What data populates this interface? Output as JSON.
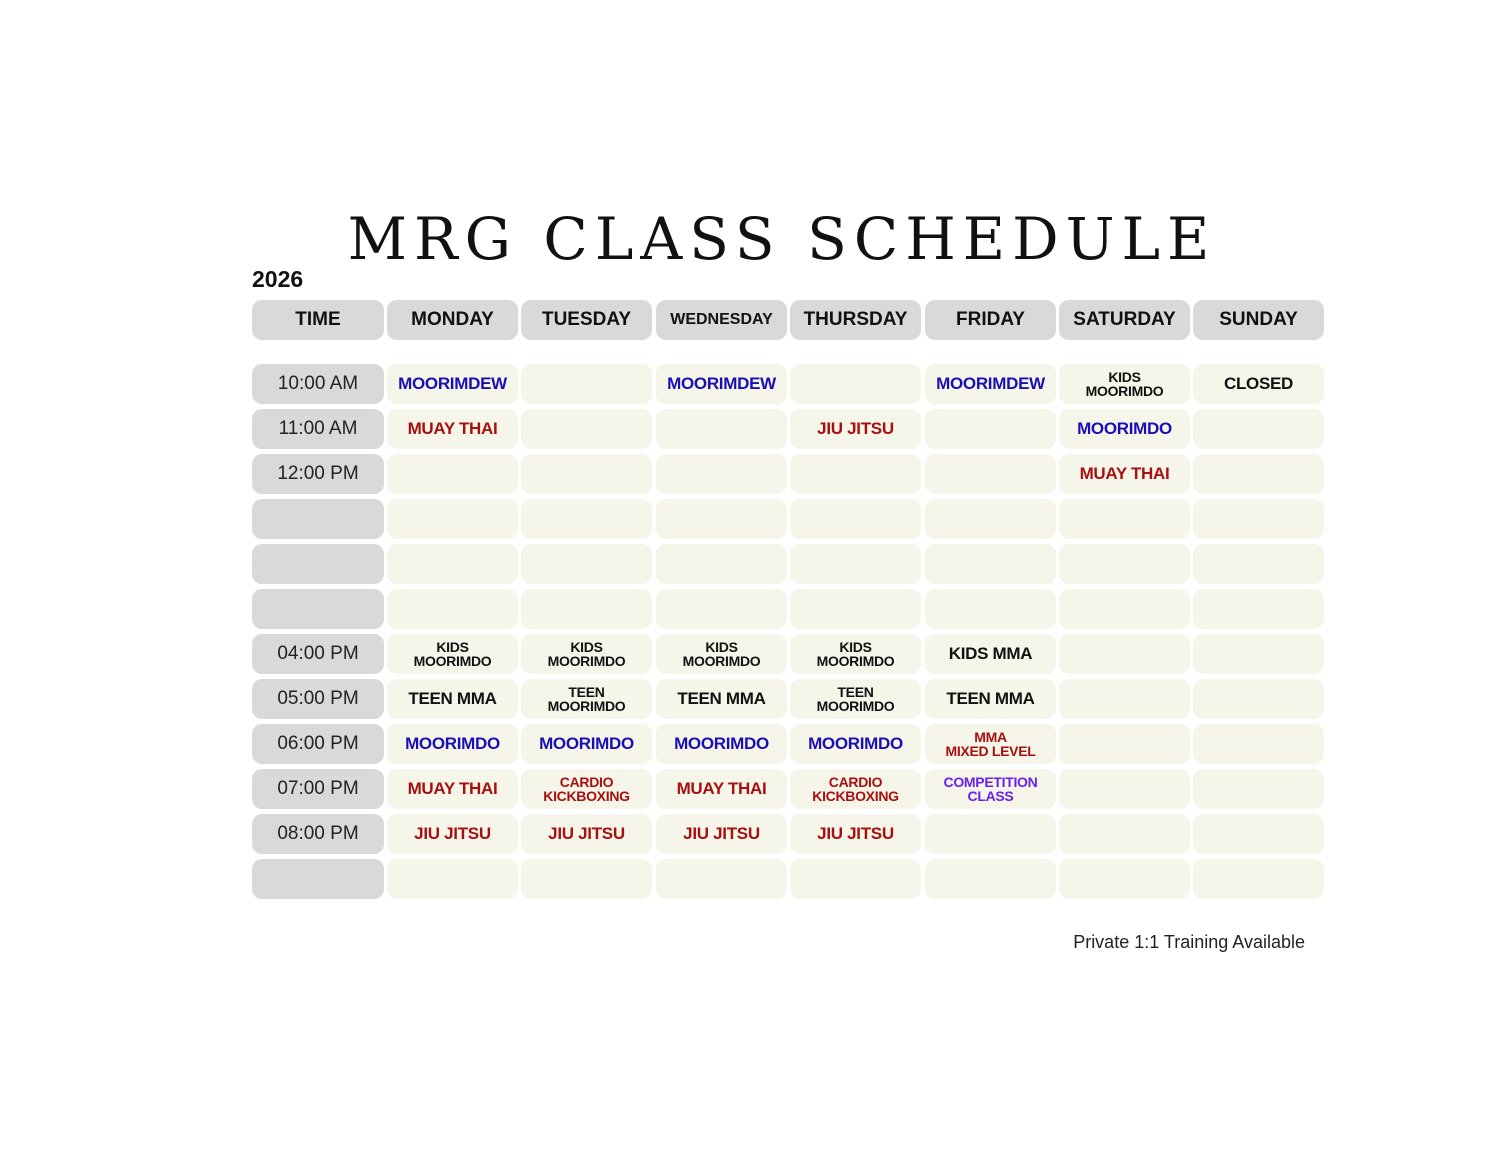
{
  "title": "MRG CLASS SCHEDULE",
  "year": "2026",
  "colors": {
    "black": "#111111",
    "blue": "#1a0fb5",
    "red": "#a80f0f",
    "purple": "#6a1ff0"
  },
  "headers": [
    "TIME",
    "MONDAY",
    "TUESDAY",
    "WEDNESDAY",
    "THURSDAY",
    "FRIDAY",
    "SATURDAY",
    "SUNDAY"
  ],
  "rows": [
    {
      "time": "10:00 AM",
      "cells": [
        {
          "text": "MOORIMDEW",
          "color": "blue"
        },
        {
          "text": ""
        },
        {
          "text": "MOORIMDEW",
          "color": "blue"
        },
        {
          "text": ""
        },
        {
          "text": "MOORIMDEW",
          "color": "blue"
        },
        {
          "text": "KIDS\nMOORIMDO",
          "color": "black"
        },
        {
          "text": "CLOSED",
          "color": "black"
        }
      ]
    },
    {
      "time": "11:00 AM",
      "cells": [
        {
          "text": "MUAY THAI",
          "color": "red"
        },
        {
          "text": ""
        },
        {
          "text": ""
        },
        {
          "text": "JIU JITSU",
          "color": "red"
        },
        {
          "text": ""
        },
        {
          "text": "MOORIMDO",
          "color": "blue"
        },
        {
          "text": ""
        }
      ]
    },
    {
      "time": "12:00 PM",
      "cells": [
        {
          "text": ""
        },
        {
          "text": ""
        },
        {
          "text": ""
        },
        {
          "text": ""
        },
        {
          "text": ""
        },
        {
          "text": "MUAY THAI",
          "color": "red"
        },
        {
          "text": ""
        }
      ]
    },
    {
      "time": "",
      "cells": [
        {
          "text": ""
        },
        {
          "text": ""
        },
        {
          "text": ""
        },
        {
          "text": ""
        },
        {
          "text": ""
        },
        {
          "text": ""
        },
        {
          "text": ""
        }
      ]
    },
    {
      "time": "",
      "cells": [
        {
          "text": ""
        },
        {
          "text": ""
        },
        {
          "text": ""
        },
        {
          "text": ""
        },
        {
          "text": ""
        },
        {
          "text": ""
        },
        {
          "text": ""
        }
      ]
    },
    {
      "time": "",
      "cells": [
        {
          "text": ""
        },
        {
          "text": ""
        },
        {
          "text": ""
        },
        {
          "text": ""
        },
        {
          "text": ""
        },
        {
          "text": ""
        },
        {
          "text": ""
        }
      ]
    },
    {
      "time": "04:00 PM",
      "cells": [
        {
          "text": "KIDS\nMOORIMDO",
          "color": "black"
        },
        {
          "text": "KIDS\nMOORIMDO",
          "color": "black"
        },
        {
          "text": "KIDS\nMOORIMDO",
          "color": "black"
        },
        {
          "text": "KIDS\nMOORIMDO",
          "color": "black"
        },
        {
          "text": "KIDS MMA",
          "color": "black"
        },
        {
          "text": ""
        },
        {
          "text": ""
        }
      ]
    },
    {
      "time": "05:00 PM",
      "cells": [
        {
          "text": "TEEN MMA",
          "color": "black"
        },
        {
          "text": "TEEN\nMOORIMDO",
          "color": "black"
        },
        {
          "text": "TEEN MMA",
          "color": "black"
        },
        {
          "text": "TEEN\nMOORIMDO",
          "color": "black"
        },
        {
          "text": "TEEN MMA",
          "color": "black"
        },
        {
          "text": ""
        },
        {
          "text": ""
        }
      ]
    },
    {
      "time": "06:00 PM",
      "cells": [
        {
          "text": "MOORIMDO",
          "color": "blue"
        },
        {
          "text": "MOORIMDO",
          "color": "blue"
        },
        {
          "text": "MOORIMDO",
          "color": "blue"
        },
        {
          "text": "MOORIMDO",
          "color": "blue"
        },
        {
          "text": "MMA\nMIXED LEVEL",
          "color": "red"
        },
        {
          "text": ""
        },
        {
          "text": ""
        }
      ]
    },
    {
      "time": "07:00 PM",
      "cells": [
        {
          "text": "MUAY THAI",
          "color": "red"
        },
        {
          "text": "CARDIO\nKICKBOXING",
          "color": "red"
        },
        {
          "text": "MUAY THAI",
          "color": "red"
        },
        {
          "text": "CARDIO\nKICKBOXING",
          "color": "red"
        },
        {
          "text": "COMPETITION\nCLASS",
          "color": "purple"
        },
        {
          "text": ""
        },
        {
          "text": ""
        }
      ]
    },
    {
      "time": "08:00 PM",
      "cells": [
        {
          "text": "JIU JITSU",
          "color": "red"
        },
        {
          "text": "JIU JITSU",
          "color": "red"
        },
        {
          "text": "JIU JITSU",
          "color": "red"
        },
        {
          "text": "JIU JITSU",
          "color": "red"
        },
        {
          "text": ""
        },
        {
          "text": ""
        },
        {
          "text": ""
        }
      ]
    },
    {
      "time": "",
      "cells": [
        {
          "text": ""
        },
        {
          "text": ""
        },
        {
          "text": ""
        },
        {
          "text": ""
        },
        {
          "text": ""
        },
        {
          "text": ""
        },
        {
          "text": ""
        }
      ]
    }
  ],
  "footer": "Private 1:1 Training Available"
}
